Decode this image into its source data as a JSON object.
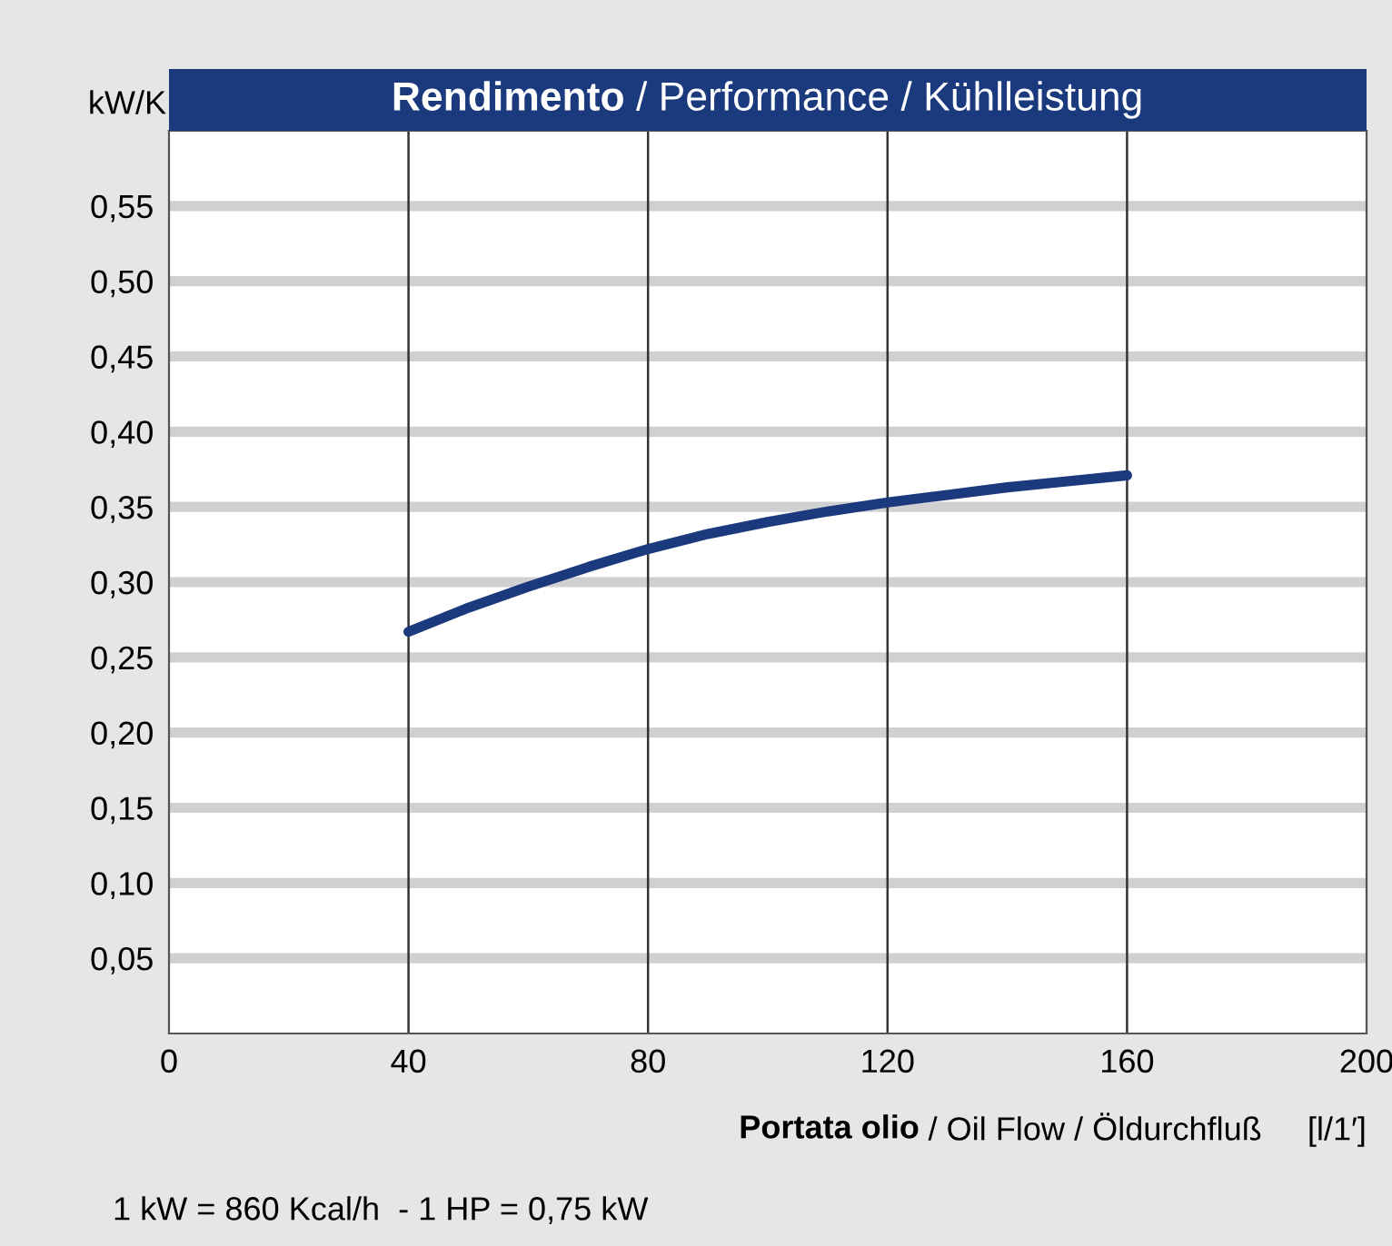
{
  "chart_data": {
    "type": "line",
    "title": "Rendimento / Performance / Kühlleistung",
    "ylabel": "kW/K",
    "xlabel": "Portata olio / Oil Flow / Öldurchfluß     [l/1′]",
    "annotations": [
      "1 kW = 860 Kcal/h  - 1 HP = 0,75 kW"
    ],
    "x": [
      40,
      50,
      60,
      70,
      80,
      90,
      100,
      110,
      120,
      130,
      140,
      150,
      160
    ],
    "series": [
      {
        "color": "#1b3a7e",
        "values": [
          0.267,
          0.283,
          0.297,
          0.31,
          0.322,
          0.332,
          0.34,
          0.347,
          0.353,
          0.358,
          0.363,
          0.367,
          0.371
        ]
      }
    ],
    "xlim": [
      0,
      200
    ],
    "xticks": [
      0,
      40,
      80,
      120,
      160,
      200
    ],
    "ylim": [
      0,
      0.6
    ],
    "yticks": [
      {
        "value": 0.05,
        "label": "0,05"
      },
      {
        "value": 0.1,
        "label": "0,10"
      },
      {
        "value": 0.15,
        "label": "0,15"
      },
      {
        "value": 0.2,
        "label": "0,20"
      },
      {
        "value": 0.25,
        "label": "0,25"
      },
      {
        "value": 0.3,
        "label": "0,30"
      },
      {
        "value": 0.35,
        "label": "0,35"
      },
      {
        "value": 0.4,
        "label": "0,40"
      },
      {
        "value": 0.45,
        "label": "0,45"
      },
      {
        "value": 0.5,
        "label": "0,50"
      },
      {
        "value": 0.55,
        "label": "0,55"
      }
    ],
    "grid": true,
    "marker": "none",
    "line_style": "solid",
    "legend": false
  }
}
